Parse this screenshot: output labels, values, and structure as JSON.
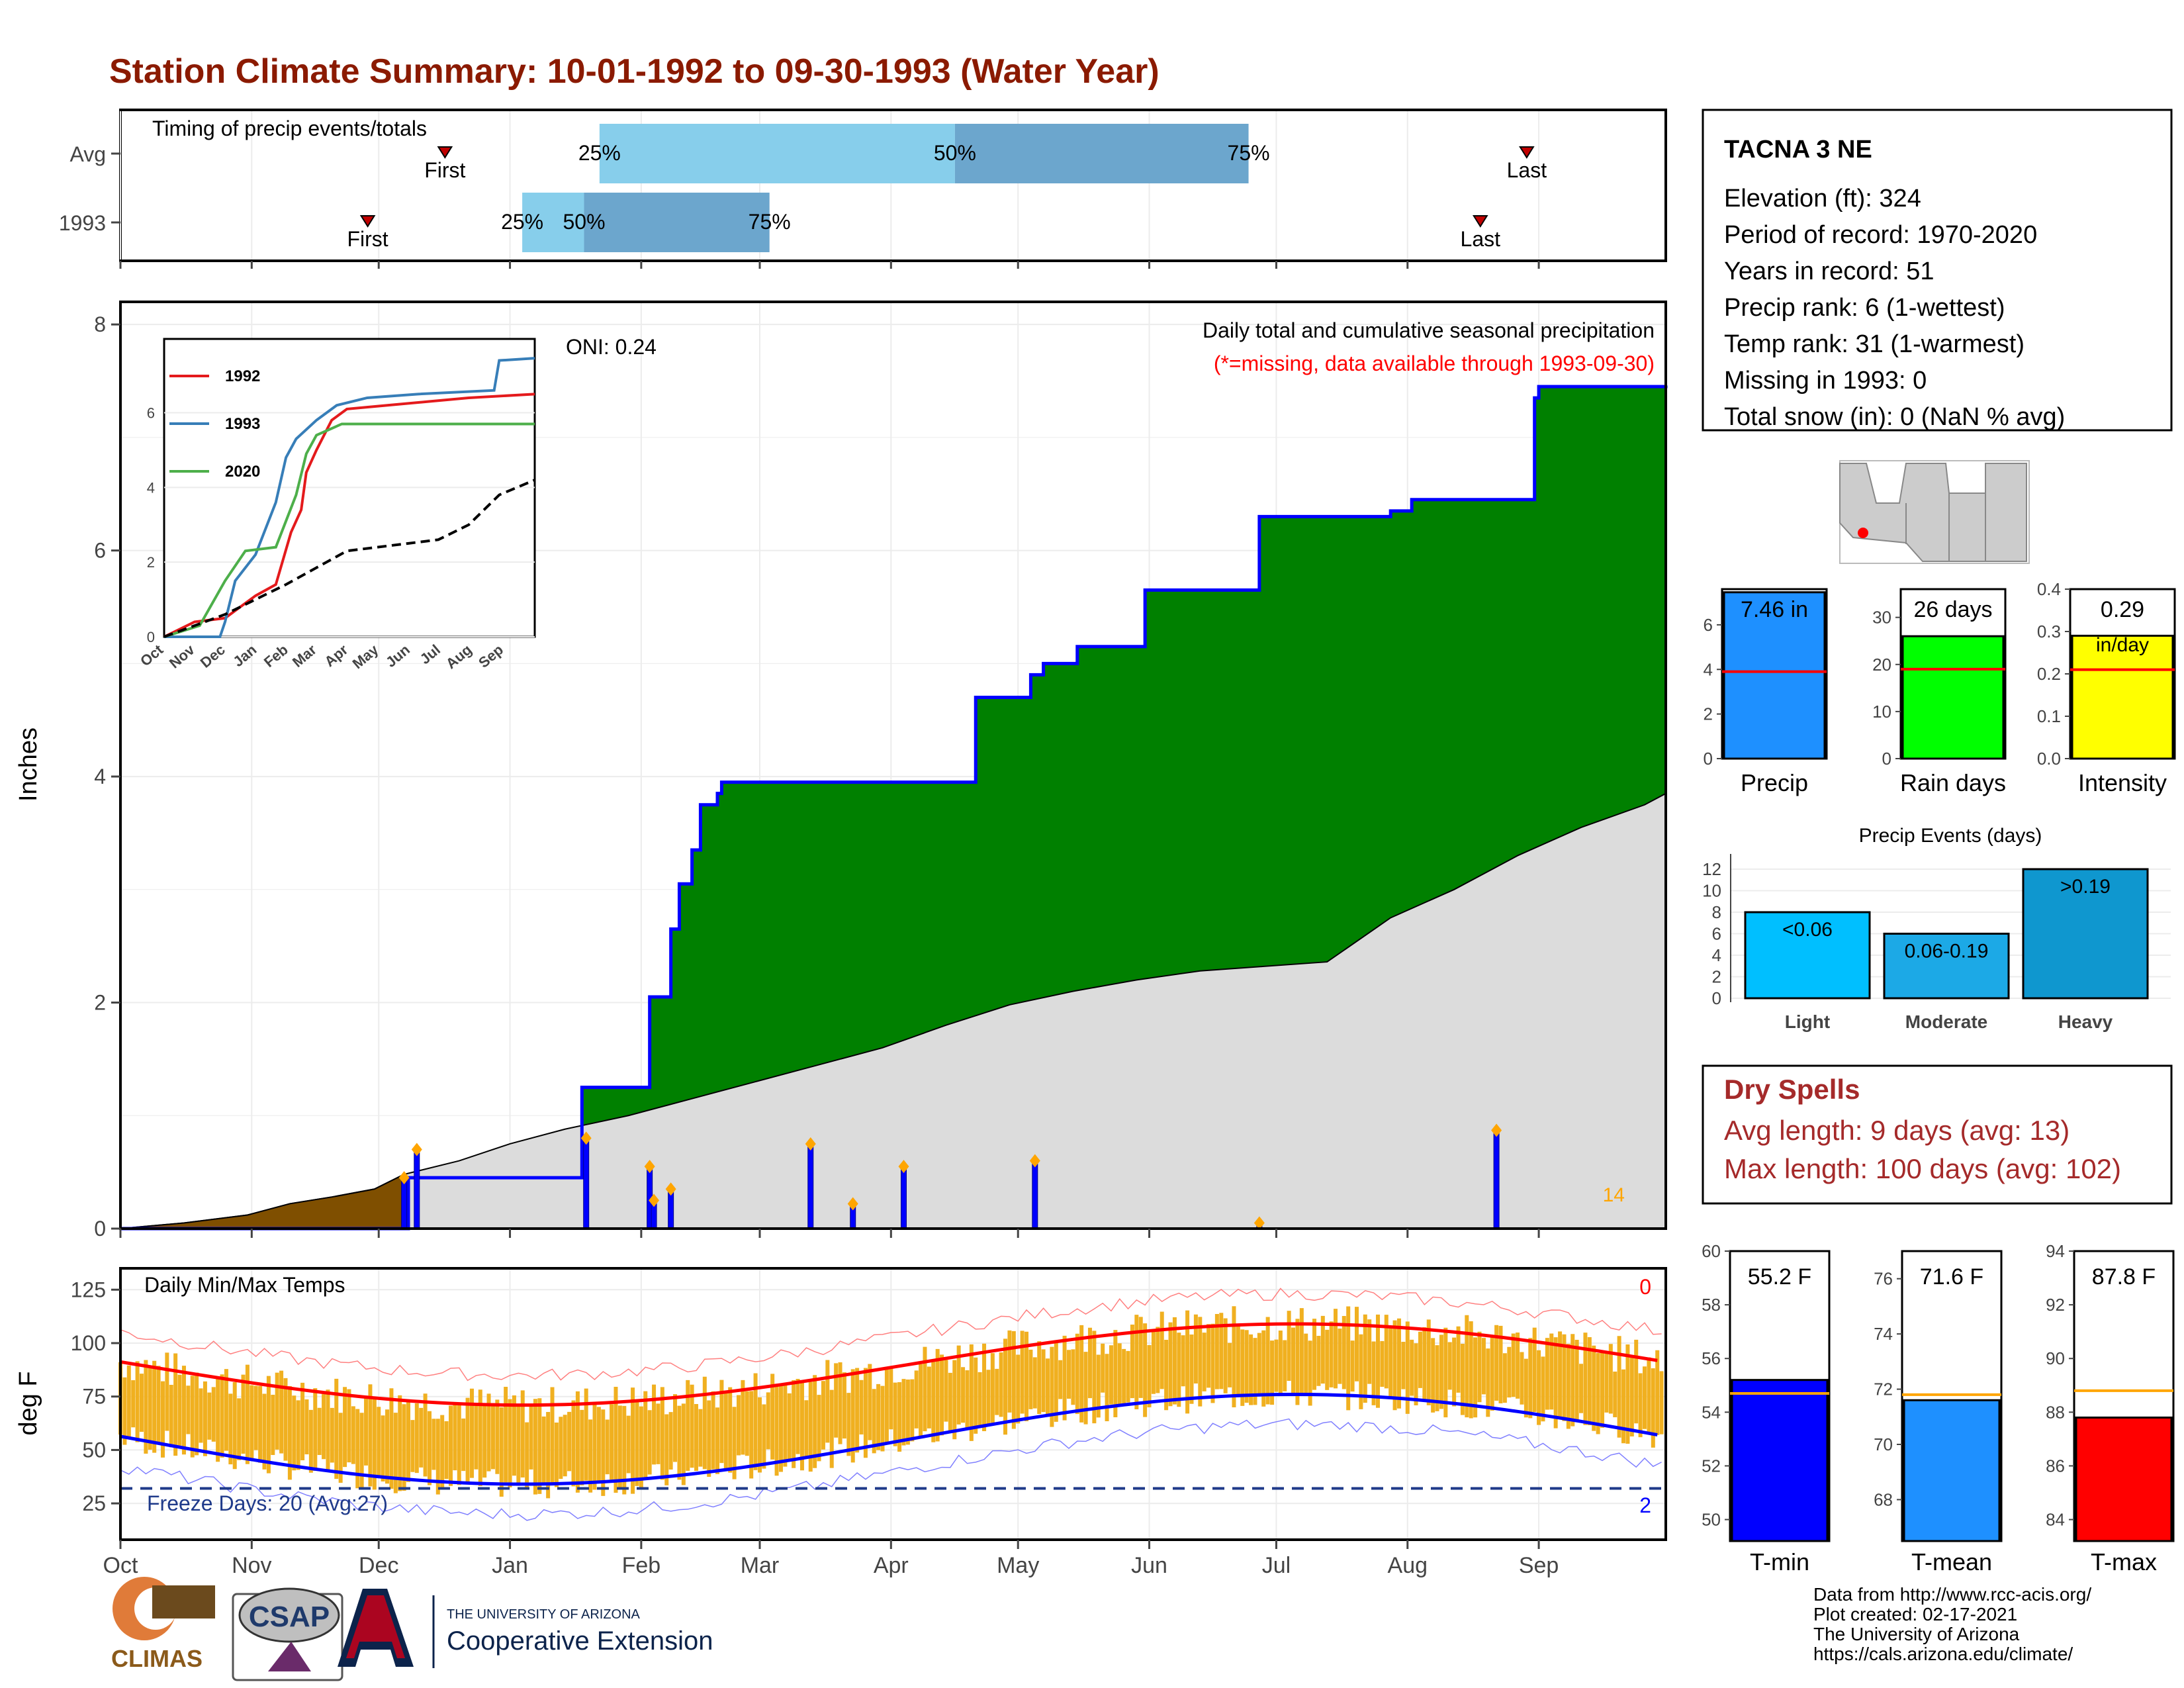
{
  "title": "Station Climate Summary: 10-01-1992 to 09-30-1993 (Water Year)",
  "colors": {
    "title": "#8b1a00",
    "green": "#008000",
    "brown": "#7f4f00",
    "gray": "#dcdcdc",
    "blue": "#0000ff",
    "orange": "#ffa500",
    "temp_fill": "#f0b020",
    "precip_bar": "#1e90ff",
    "rain_bar": "#00ff00",
    "intensity_bar": "#ffff00",
    "light": "#00bfff",
    "moderate": "#1ca9e6",
    "heavy": "#0f97cf",
    "tmin": "#0000ff",
    "tmean": "#1e90ff",
    "tmax": "#ff0000",
    "dry": "#a52a2a",
    "timing_light": "#87ceeb",
    "timing_dark": "#6ca6cd"
  },
  "months": [
    "Oct",
    "Nov",
    "Dec",
    "Jan",
    "Feb",
    "Mar",
    "Apr",
    "May",
    "Jun",
    "Jul",
    "Aug",
    "Sep"
  ],
  "timing": {
    "label": "Timing of precip events/totals",
    "rows": [
      {
        "name": "Avg",
        "first": 21,
        "p25": 31,
        "p50": 54,
        "p75": 73,
        "last": 91
      },
      {
        "name": "1993",
        "first": 16,
        "p25": 26,
        "p50": 30,
        "p75": 42,
        "last": 88
      }
    ],
    "first_label": "First",
    "last_label": "Last",
    "p25_label": "25%",
    "p50_label": "50%",
    "p75_label": "75%"
  },
  "station": {
    "name": "TACNA 3 NE",
    "lines": [
      "Elevation (ft): 324",
      "Period of record: 1970-2020",
      "Years in record: 51",
      "Precip rank: 6 (1-wettest)",
      "Temp rank: 31 (1-warmest)",
      "Missing in 1993: 0",
      "Total snow (in): 0 (NaN % avg)"
    ]
  },
  "main": {
    "ylabel": "Inches",
    "oni": "ONI: 0.24",
    "subtitle": "Daily total and cumulative seasonal precipitation",
    "missing_note": "(*=missing, data available through 1993-09-30)",
    "count_label": "14",
    "yticks": [
      "0",
      "2",
      "4",
      "6",
      "8"
    ]
  },
  "inset": {
    "legend": [
      "1992",
      "1993",
      "2020"
    ],
    "yticks": [
      "0",
      "2",
      "4",
      "6"
    ],
    "xticks": [
      "Oct",
      "Nov",
      "Dec",
      "Jan",
      "Feb",
      "Mar",
      "Apr",
      "May",
      "Jun",
      "Jul",
      "Aug",
      "Sep"
    ]
  },
  "temps": {
    "title": "Daily Min/Max Temps",
    "ylabel": "deg F",
    "yticks": [
      "25",
      "50",
      "75",
      "100",
      "125"
    ],
    "freeze_label": "Freeze Days: 20 (Avg:27)",
    "top_count": "0",
    "bottom_count": "2"
  },
  "mini_bars": {
    "precip": {
      "label": "Precip",
      "value_label": "7.46 in",
      "value": 7.46,
      "avg": 3.9,
      "yticks": [
        "0",
        "2",
        "4",
        "6"
      ],
      "ymax": 7.6
    },
    "rain": {
      "label": "Rain days",
      "value_label": "26 days",
      "value": 26,
      "avg": 19,
      "yticks": [
        "0",
        "10",
        "20",
        "30"
      ],
      "ymax": 36
    },
    "intensity": {
      "label": "Intensity",
      "value_label": "0.29",
      "value_label2": "in/day",
      "value": 0.29,
      "avg": 0.21,
      "yticks": [
        "0.0",
        "0.1",
        "0.2",
        "0.3",
        "0.4"
      ],
      "ymax": 0.4
    }
  },
  "events": {
    "title": "Precip Events (days)",
    "bars": [
      {
        "cat": "Light",
        "label": "<0.06",
        "value": 8
      },
      {
        "cat": "Moderate",
        "label": "0.06-0.19",
        "value": 6
      },
      {
        "cat": "Heavy",
        "label": ">0.19",
        "value": 12
      }
    ],
    "yticks": [
      "0",
      "2",
      "4",
      "6",
      "8",
      "10",
      "12"
    ]
  },
  "dry": {
    "title": "Dry Spells",
    "line1": "Avg length: 9 days (avg: 13)",
    "line2": "Max length: 100 days (avg: 102)"
  },
  "temp_bars": {
    "tmin": {
      "label": "T-min",
      "value_label": "55.2 F",
      "value": 55.2,
      "avg": 54.7,
      "ymin": 49.2,
      "ymax": 60,
      "yticks": [
        "50",
        "52",
        "54",
        "56",
        "58",
        "60"
      ]
    },
    "tmean": {
      "label": "T-mean",
      "value_label": "71.6 F",
      "value": 71.6,
      "avg": 71.8,
      "ymin": 66.5,
      "ymax": 77,
      "yticks": [
        "68",
        "70",
        "72",
        "74",
        "76"
      ]
    },
    "tmax": {
      "label": "T-max",
      "value_label": "87.8 F",
      "value": 87.8,
      "avg": 88.8,
      "ymin": 83.2,
      "ymax": 94,
      "yticks": [
        "84",
        "86",
        "88",
        "90",
        "92",
        "94"
      ]
    }
  },
  "footer": {
    "lines": [
      "Data from http://www.rcc-acis.org/",
      "Plot created: 02-17-2021",
      "The University of Arizona",
      "https://cals.arizona.edu/climate/"
    ],
    "climas": "CLIMAS",
    "csap": "CSAP",
    "ua_small": "THE UNIVERSITY OF ARIZONA",
    "ua_big": "Cooperative Extension"
  },
  "chart_data": {
    "type": "area",
    "title": "Station Climate Summary: 10-01-1992 to 09-30-1993 (Water Year)",
    "ylabel": "Inches",
    "ylim": [
      0,
      8.2
    ],
    "series": [
      {
        "name": "1993",
        "x_day": [
          0,
          67,
          68,
          109,
          110,
          125,
          126,
          130,
          132,
          135,
          137,
          141,
          142,
          145,
          150,
          202,
          204,
          215,
          218,
          224,
          226,
          230,
          235,
          242,
          243,
          248,
          250,
          269,
          270,
          295,
          296,
          300,
          305,
          325,
          330,
          334,
          335,
          360,
          365
        ],
        "y": [
          0,
          0,
          0.45,
          1.25,
          1.25,
          2.05,
          2.05,
          2.65,
          3.05,
          3.35,
          3.75,
          3.85,
          3.95,
          3.95,
          3.95,
          4.7,
          4.7,
          4.9,
          5.0,
          5.0,
          5.15,
          5.15,
          5.15,
          5.65,
          5.65,
          5.65,
          5.65,
          6.3,
          6.3,
          6.3,
          6.3,
          6.35,
          6.45,
          6.45,
          6.45,
          7.35,
          7.45,
          7.45,
          7.46
        ]
      }
    ],
    "daily_precip_peaks": [
      {
        "day": 67,
        "in": 0.45
      },
      {
        "day": 70,
        "in": 0.7
      },
      {
        "day": 110,
        "in": 0.8
      },
      {
        "day": 125,
        "in": 0.55
      },
      {
        "day": 126,
        "in": 0.25
      },
      {
        "day": 130,
        "in": 0.35
      },
      {
        "day": 163,
        "in": 0.75
      },
      {
        "day": 173,
        "in": 0.22
      },
      {
        "day": 185,
        "in": 0.55
      },
      {
        "day": 216,
        "in": 0.6
      },
      {
        "day": 269,
        "in": 0.05
      },
      {
        "day": 325,
        "in": 0.87
      }
    ]
  }
}
